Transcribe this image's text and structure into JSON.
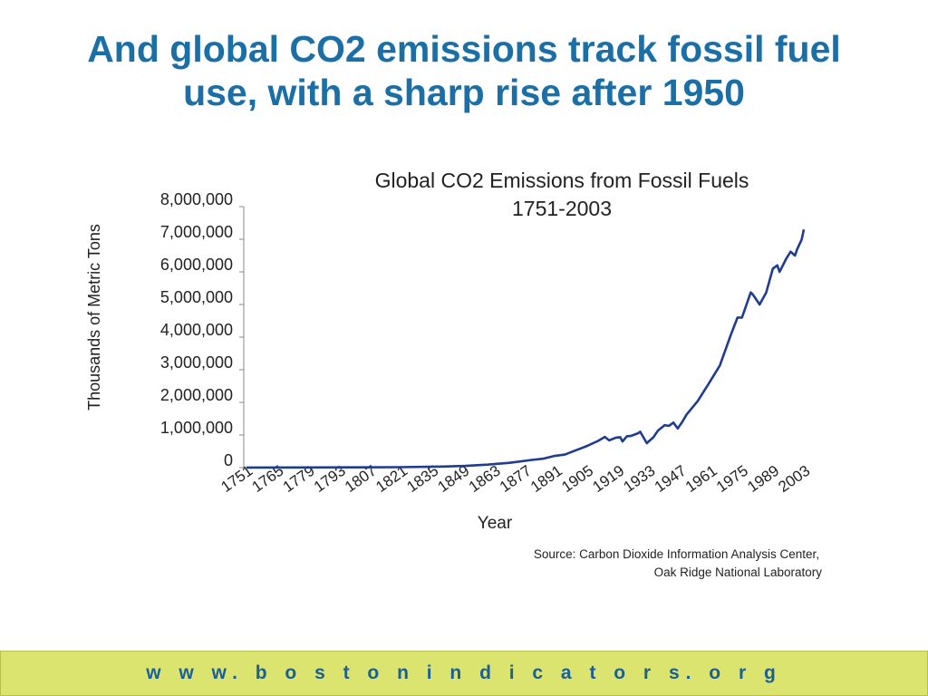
{
  "slide": {
    "title_line1": "And global CO2 emissions track fossil fuel",
    "title_line2": "use, with a sharp rise after 1950"
  },
  "footer": {
    "url": "w w w. b o s t o n i n d i c a t o r s. o r g"
  },
  "colors": {
    "title": "#1a6fa6",
    "line": "#1f3c8f",
    "footer_bg": "#dbe46f",
    "footer_text": "#1a5f95"
  },
  "chart_data": {
    "type": "line",
    "title": "Global CO2 Emissions from Fossil Fuels",
    "subtitle": "1751-2003",
    "xlabel": "Year",
    "ylabel": "Thousands of Metric Tons",
    "xlim": [
      1751,
      2003
    ],
    "ylim": [
      0,
      8000000
    ],
    "x_ticks": [
      "1751",
      "1765",
      "1779",
      "1793",
      "1807",
      "1821",
      "1835",
      "1849",
      "1863",
      "1877",
      "1891",
      "1905",
      "1919",
      "1933",
      "1947",
      "1961",
      "1975",
      "1989",
      "2003"
    ],
    "y_ticks": [
      "0",
      "1,000,000",
      "2,000,000",
      "3,000,000",
      "4,000,000",
      "5,000,000",
      "6,000,000",
      "7,000,000",
      "8,000,000"
    ],
    "source_line1": "Source: Carbon Dioxide Information Analysis Center,",
    "source_line2": "Oak Ridge National Laboratory",
    "grid": false,
    "series": [
      {
        "points": [
          [
            1751,
            3000
          ],
          [
            1780,
            5000
          ],
          [
            1800,
            8000
          ],
          [
            1820,
            14000
          ],
          [
            1840,
            33000
          ],
          [
            1850,
            54000
          ],
          [
            1860,
            91000
          ],
          [
            1870,
            147000
          ],
          [
            1880,
            236000
          ],
          [
            1885,
            272000
          ],
          [
            1890,
            356000
          ],
          [
            1895,
            400000
          ],
          [
            1900,
            534000
          ],
          [
            1905,
            663000
          ],
          [
            1910,
            819000
          ],
          [
            1913,
            943000
          ],
          [
            1915,
            836000
          ],
          [
            1918,
            920000
          ],
          [
            1920,
            932000
          ],
          [
            1921,
            803000
          ],
          [
            1923,
            960000
          ],
          [
            1925,
            975000
          ],
          [
            1928,
            1053000
          ],
          [
            1929,
            1100000
          ],
          [
            1932,
            750000
          ],
          [
            1935,
            930000
          ],
          [
            1937,
            1130000
          ],
          [
            1940,
            1300000
          ],
          [
            1942,
            1280000
          ],
          [
            1944,
            1380000
          ],
          [
            1946,
            1200000
          ],
          [
            1947,
            1300000
          ],
          [
            1948,
            1400000
          ],
          [
            1950,
            1630000
          ],
          [
            1955,
            2040000
          ],
          [
            1960,
            2577000
          ],
          [
            1965,
            3130000
          ],
          [
            1970,
            4076000
          ],
          [
            1973,
            4600000
          ],
          [
            1975,
            4596000
          ],
          [
            1979,
            5369000
          ],
          [
            1980,
            5300000
          ],
          [
            1983,
            5000000
          ],
          [
            1986,
            5370000
          ],
          [
            1989,
            6100000
          ],
          [
            1991,
            6200000
          ],
          [
            1992,
            6000000
          ],
          [
            1995,
            6400000
          ],
          [
            1997,
            6620000
          ],
          [
            1999,
            6500000
          ],
          [
            2000,
            6700000
          ],
          [
            2002,
            6990000
          ],
          [
            2003,
            7300000
          ]
        ]
      }
    ]
  }
}
